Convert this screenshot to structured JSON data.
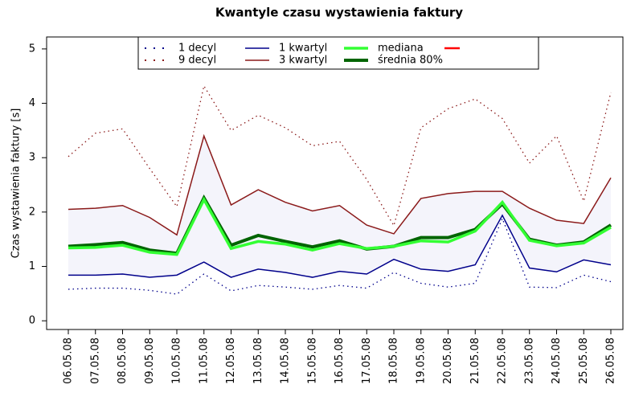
{
  "chart_data": {
    "type": "line",
    "title": "Kwantyle czasu wystawienia faktury",
    "y_label": "Czas wystawienia faktury [s]",
    "categories": [
      "06.05.08",
      "07.05.08",
      "08.05.08",
      "09.05.08",
      "10.05.08",
      "11.05.08",
      "12.05.08",
      "13.05.08",
      "14.05.08",
      "15.05.08",
      "16.05.08",
      "17.05.08",
      "18.05.08",
      "19.05.08",
      "20.05.08",
      "21.05.08",
      "22.05.08",
      "23.05.08",
      "24.05.08",
      "25.05.08",
      "26.05.08"
    ],
    "series": [
      {
        "name": "1 decyl",
        "color": "#00008b",
        "style": "dotted",
        "width": 1.3,
        "values": [
          0.58,
          0.6,
          0.6,
          0.56,
          0.49,
          0.86,
          0.55,
          0.65,
          0.62,
          0.58,
          0.65,
          0.6,
          0.89,
          0.69,
          0.62,
          0.69,
          1.88,
          0.62,
          0.61,
          0.84,
          0.72
        ]
      },
      {
        "name": "9 decyl",
        "color": "#8b1a1a",
        "style": "dotted",
        "width": 1.3,
        "values": [
          3.02,
          3.45,
          3.53,
          2.8,
          2.1,
          4.32,
          3.5,
          3.78,
          3.55,
          3.22,
          3.3,
          2.6,
          1.75,
          3.55,
          3.9,
          4.08,
          3.72,
          2.9,
          3.4,
          2.2,
          4.2
        ]
      },
      {
        "name": "1 kwartyl",
        "color": "#00008b",
        "style": "solid",
        "width": 1.5,
        "values": [
          0.84,
          0.84,
          0.86,
          0.8,
          0.84,
          1.08,
          0.8,
          0.95,
          0.89,
          0.8,
          0.91,
          0.86,
          1.13,
          0.95,
          0.91,
          1.03,
          1.94,
          0.97,
          0.9,
          1.12,
          1.03
        ]
      },
      {
        "name": "3 kwartyl",
        "color": "#8b1a1a",
        "style": "solid",
        "width": 1.5,
        "values": [
          2.05,
          2.07,
          2.12,
          1.9,
          1.58,
          3.4,
          2.13,
          2.41,
          2.18,
          2.02,
          2.12,
          1.76,
          1.6,
          2.25,
          2.34,
          2.38,
          2.38,
          2.07,
          1.85,
          1.79,
          2.63
        ]
      },
      {
        "name": "średnia 80%",
        "color": "#006400",
        "style": "solid",
        "width": 4,
        "values": [
          1.37,
          1.4,
          1.44,
          1.3,
          1.24,
          2.26,
          1.39,
          1.57,
          1.46,
          1.36,
          1.47,
          1.32,
          1.37,
          1.53,
          1.53,
          1.68,
          2.15,
          1.5,
          1.39,
          1.45,
          1.76
        ]
      },
      {
        "name": "mediana",
        "color": "#33ff33",
        "style": "solid",
        "width": 3.5,
        "values": [
          1.34,
          1.35,
          1.39,
          1.26,
          1.22,
          2.23,
          1.33,
          1.46,
          1.41,
          1.3,
          1.42,
          1.33,
          1.37,
          1.47,
          1.45,
          1.65,
          2.18,
          1.48,
          1.38,
          1.43,
          1.72
        ]
      }
    ],
    "band_color": "#f4f4fb",
    "ylim": [
      -0.16,
      5.22
    ],
    "yticks": [
      0,
      1,
      2,
      3,
      4,
      5
    ]
  }
}
